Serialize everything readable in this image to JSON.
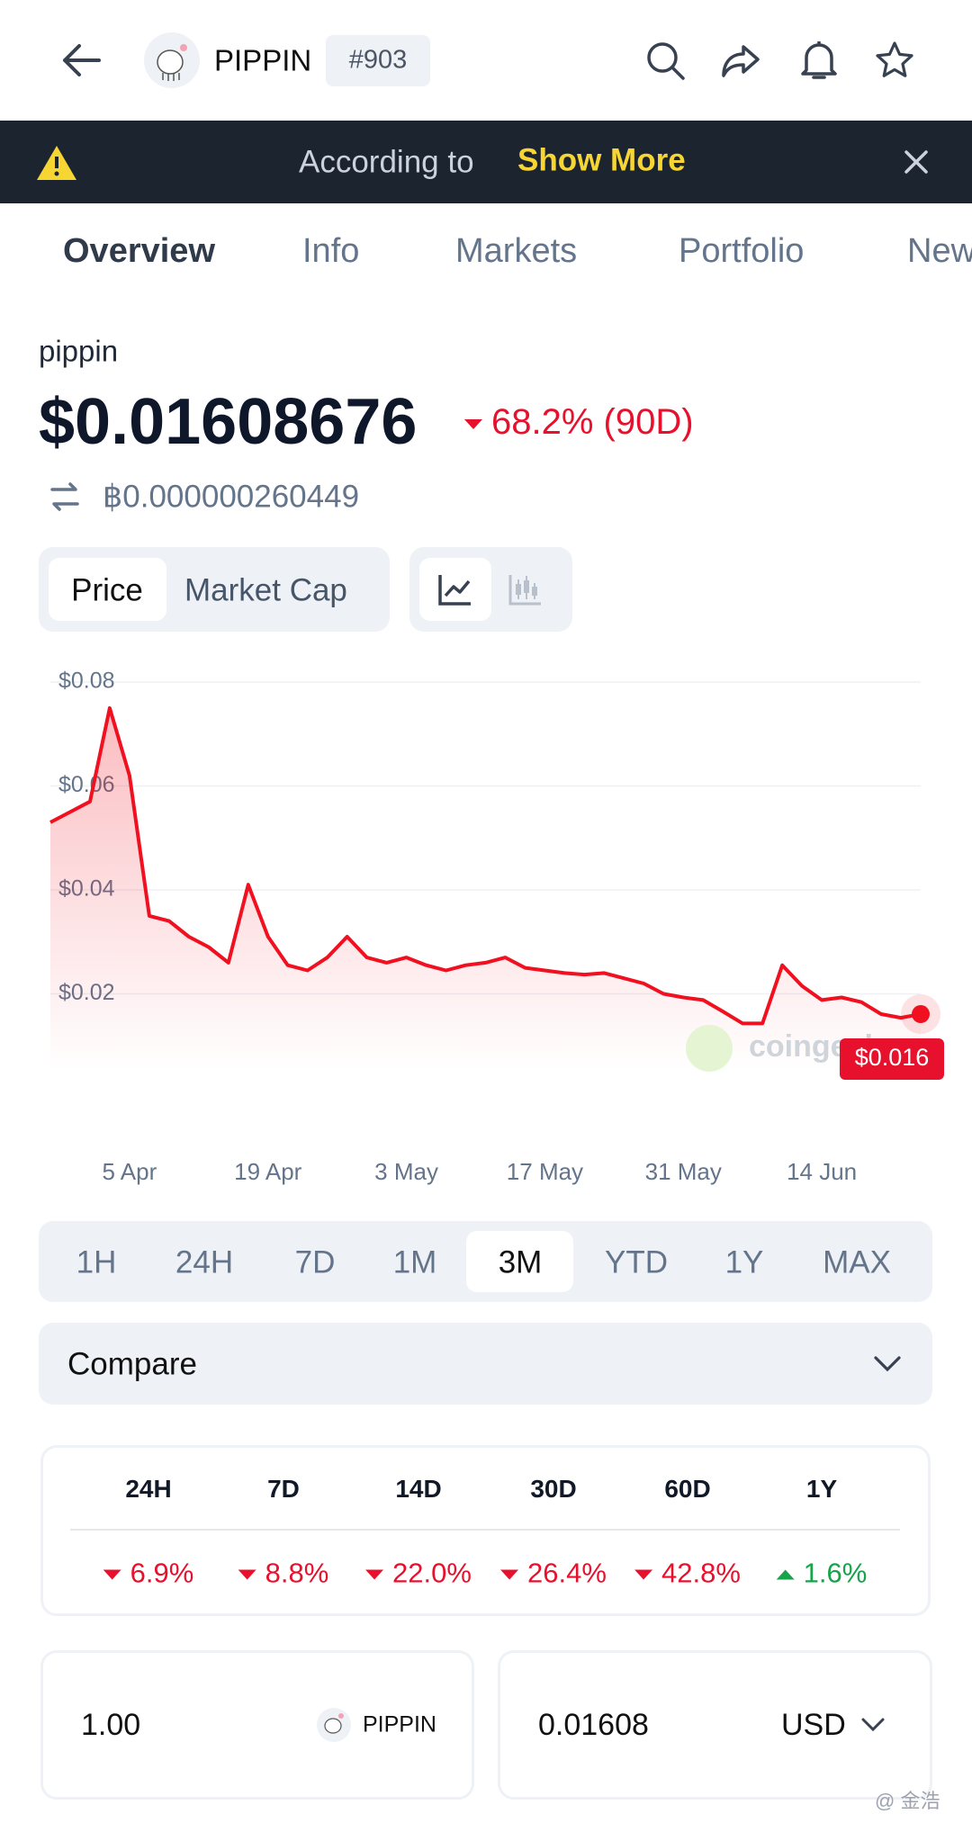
{
  "header": {
    "coin": "PIPPIN",
    "rank": "#903"
  },
  "banner": {
    "text": "According to",
    "link": "Show More"
  },
  "tabs": [
    "Overview",
    "Info",
    "Markets",
    "Portfolio",
    "New"
  ],
  "coin": {
    "name": "pippin",
    "price": "$0.01608676",
    "change": "68.2% (90D)",
    "btc_price": "฿0.000000260449"
  },
  "chart_toggle": [
    "Price",
    "Market Cap"
  ],
  "chart_data": {
    "type": "line",
    "x": [
      "28 Mar",
      "30 Mar",
      "1 Apr",
      "3 Apr",
      "5 Apr",
      "7 Apr",
      "9 Apr",
      "11 Apr",
      "13 Apr",
      "15 Apr",
      "17 Apr",
      "19 Apr",
      "21 Apr",
      "23 Apr",
      "25 Apr",
      "27 Apr",
      "29 Apr",
      "1 May",
      "3 May",
      "5 May",
      "7 May",
      "9 May",
      "11 May",
      "13 May",
      "15 May",
      "17 May",
      "19 May",
      "21 May",
      "23 May",
      "25 May",
      "27 May",
      "29 May",
      "31 May",
      "2 Jun",
      "4 Jun",
      "6 Jun",
      "8 Jun",
      "10 Jun",
      "12 Jun",
      "14 Jun",
      "16 Jun",
      "18 Jun",
      "20 Jun",
      "22 Jun",
      "24 Jun"
    ],
    "values": [
      0.053,
      0.055,
      0.057,
      0.075,
      0.062,
      0.035,
      0.034,
      0.031,
      0.029,
      0.026,
      0.041,
      0.031,
      0.0255,
      0.0245,
      0.027,
      0.031,
      0.027,
      0.026,
      0.027,
      0.0255,
      0.0245,
      0.0255,
      0.026,
      0.027,
      0.025,
      0.0245,
      0.024,
      0.0237,
      0.024,
      0.023,
      0.022,
      0.02,
      0.0193,
      0.0188,
      0.0166,
      0.0143,
      0.0143,
      0.0255,
      0.0215,
      0.0188,
      0.0193,
      0.0184,
      0.0161,
      0.0154,
      0.0161
    ],
    "color": "#f0101f",
    "ylim": [
      0,
      0.08
    ],
    "yticks": [
      {
        "value": 0.02,
        "label": "$0.02"
      },
      {
        "value": 0.04,
        "label": "$0.04"
      },
      {
        "value": 0.06,
        "label": "$0.06"
      },
      {
        "value": 0.08,
        "label": "$0.08"
      }
    ],
    "xticks": [
      "5 Apr",
      "19 Apr",
      "3 May",
      "17 May",
      "31 May",
      "14 Jun"
    ],
    "grid": true,
    "end_label": "$0.016",
    "watermark": "coingecko"
  },
  "ranges": [
    "1H",
    "24H",
    "7D",
    "1M",
    "3M",
    "YTD",
    "1Y",
    "MAX"
  ],
  "compare": "Compare",
  "performance": {
    "periods": [
      "24H",
      "7D",
      "14D",
      "30D",
      "60D",
      "1Y"
    ],
    "changes": [
      "6.9%",
      "8.8%",
      "22.0%",
      "26.4%",
      "42.8%",
      "1.6%"
    ],
    "directions": [
      "down",
      "down",
      "down",
      "down",
      "down",
      "up"
    ]
  },
  "converter": {
    "amount": "1.00",
    "coin": "PIPPIN",
    "result": "0.01608",
    "currency": "USD"
  },
  "watermark": "@ 金浩"
}
